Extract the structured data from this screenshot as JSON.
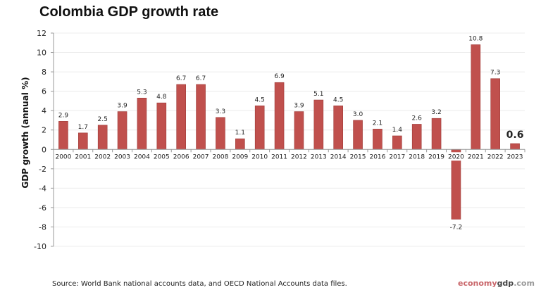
{
  "chart_data": {
    "type": "bar",
    "title": "Colombia GDP growth rate",
    "ylabel": "GDP growth (annual %)",
    "xlabel": "",
    "ylim": [
      -10,
      12
    ],
    "yticks": [
      12,
      10,
      8,
      6,
      4,
      2,
      0,
      -2,
      -4,
      -6,
      -8,
      -10
    ],
    "grid": true,
    "bar_color": "#c0504d",
    "categories": [
      "2000",
      "2001",
      "2002",
      "2003",
      "2004",
      "2005",
      "2006",
      "2007",
      "2008",
      "2009",
      "2010",
      "2011",
      "2012",
      "2013",
      "2014",
      "2015",
      "2016",
      "2017",
      "2018",
      "2019",
      "2020",
      "2021",
      "2022",
      "2023"
    ],
    "values": [
      2.9,
      1.7,
      2.5,
      3.9,
      5.3,
      4.8,
      6.7,
      6.7,
      3.3,
      1.1,
      4.5,
      6.9,
      3.9,
      5.1,
      4.5,
      3.0,
      2.1,
      1.4,
      2.6,
      3.2,
      -7.2,
      10.8,
      7.3,
      0.6
    ],
    "labels": [
      "2.9",
      "1.7",
      "2.5",
      "3.9",
      "5.3",
      "4.8",
      "6.7",
      "6.7",
      "3.3",
      "1.1",
      "4.5",
      "6.9",
      "3.9",
      "5.1",
      "4.5",
      "3.0",
      "2.1",
      "1.4",
      "2.6",
      "3.2",
      "-7.2",
      "10.8",
      "7.3",
      "0.6"
    ],
    "highlighted_label_index": 23
  },
  "source": "Source:  World Bank national accounts data, and OECD National Accounts data files.",
  "logo": {
    "part1": "economy",
    "part2": "gdp",
    "part3": ".com"
  }
}
